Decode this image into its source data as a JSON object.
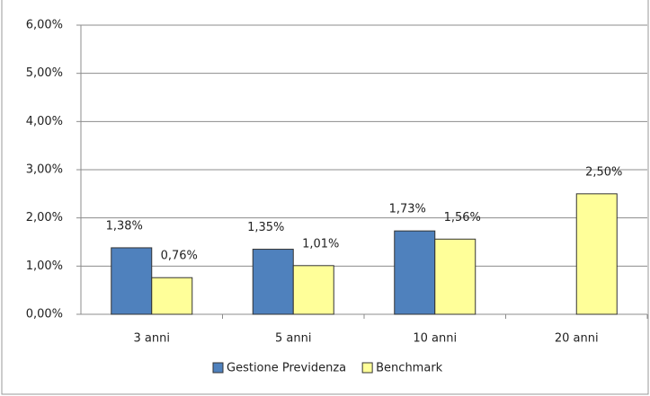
{
  "chart_data": {
    "type": "bar",
    "categories": [
      "3 anni",
      "5 anni",
      "10 anni",
      "20 anni"
    ],
    "series": [
      {
        "name": "Gestione Previdenza",
        "color": "#4f81bd",
        "values": [
          1.38,
          1.35,
          1.73,
          null
        ],
        "value_labels": [
          "1,38%",
          "1,35%",
          "1,73%",
          null
        ]
      },
      {
        "name": "Benchmark",
        "color": "#ffff99",
        "values": [
          0.76,
          1.01,
          1.56,
          2.5
        ],
        "value_labels": [
          "0,76%",
          "1,01%",
          "1,56%",
          "2,50%"
        ]
      }
    ],
    "ylim": [
      0,
      6
    ],
    "yticks": [
      {
        "value": 0,
        "label": "0,00%"
      },
      {
        "value": 1,
        "label": "1,00%"
      },
      {
        "value": 2,
        "label": "2,00%"
      },
      {
        "value": 3,
        "label": "3,00%"
      },
      {
        "value": 4,
        "label": "4,00%"
      },
      {
        "value": 5,
        "label": "5,00%"
      },
      {
        "value": 6,
        "label": "6,00%"
      }
    ],
    "grid": true,
    "legend": "bottom"
  }
}
